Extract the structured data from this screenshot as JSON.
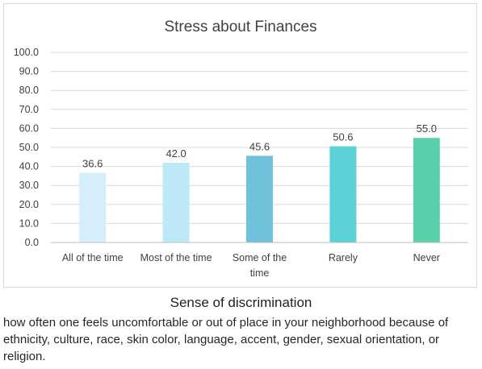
{
  "chart_data": {
    "type": "bar",
    "title": "Stress about Finances",
    "categories": [
      "All of the time",
      "Most of the time",
      "Some of the time",
      "Rarely",
      "Never"
    ],
    "values": [
      36.6,
      42.0,
      45.6,
      50.6,
      55.0
    ],
    "value_labels": [
      "36.6",
      "42.0",
      "45.6",
      "50.6",
      "55.0"
    ],
    "bar_colors": [
      "#d4eefb",
      "#bde8f8",
      "#6ec2db",
      "#5cd2d6",
      "#59d1ab"
    ],
    "ylim": [
      0,
      100
    ],
    "yticks": [
      "0.0",
      "10.0",
      "20.0",
      "30.0",
      "40.0",
      "50.0",
      "60.0",
      "70.0",
      "80.0",
      "90.0",
      "100.0"
    ],
    "grid": true,
    "grid_color": "#d9d9d9",
    "xlabel": "",
    "ylabel": ""
  },
  "caption": {
    "title": "Sense of discrimination",
    "body": "how often one feels uncomfortable or out of place in your neighborhood because of ethnicity, culture, race, skin color, language, accent, gender, sexual orientation, or religion."
  }
}
